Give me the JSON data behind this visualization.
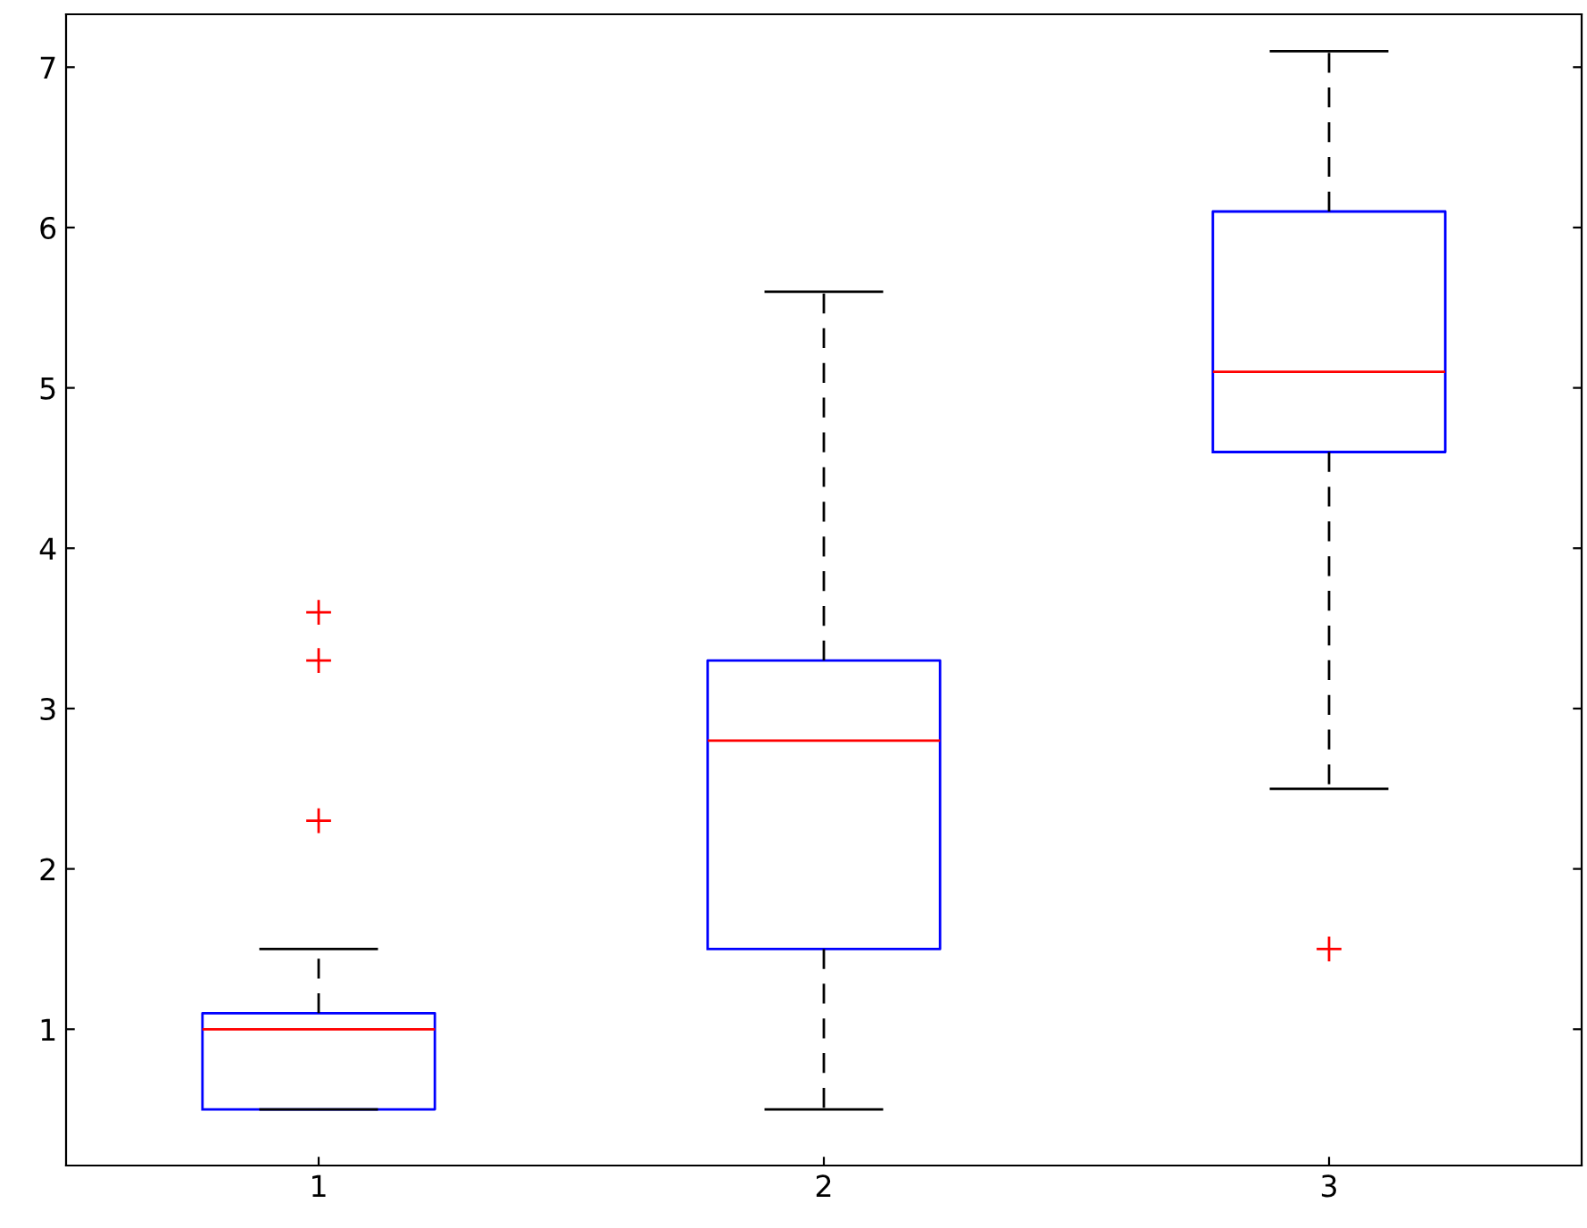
{
  "chart_data": {
    "type": "box",
    "categories": [
      "1",
      "2",
      "3"
    ],
    "boxes": [
      {
        "low": 0.5,
        "q1": 0.5,
        "median": 1.0,
        "q3": 1.1,
        "high": 1.5,
        "outliers": [
          2.3,
          3.3,
          3.6
        ]
      },
      {
        "low": 0.5,
        "q1": 1.5,
        "median": 2.8,
        "q3": 3.3,
        "high": 5.6
      },
      {
        "low": 2.5,
        "q1": 4.6,
        "median": 5.1,
        "q3": 6.1,
        "high": 7.1,
        "outliers": [
          1.5
        ]
      }
    ],
    "color": "#0000ff",
    "ylim": [
      0.15,
      7.33
    ],
    "yticks": [
      1,
      2,
      3,
      4,
      5,
      6,
      7
    ],
    "grid": false
  }
}
